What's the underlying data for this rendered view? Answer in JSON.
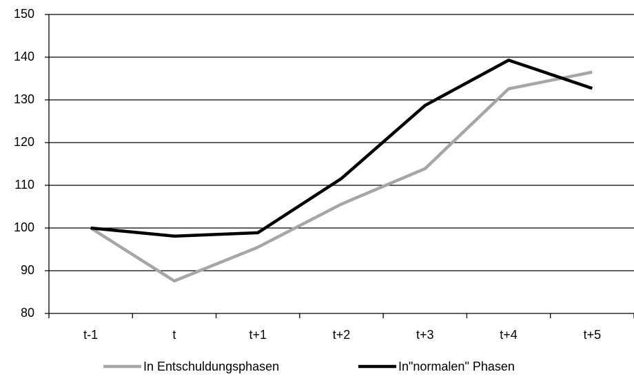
{
  "chart_data": {
    "type": "line",
    "categories": [
      "t-1",
      "t",
      "t+1",
      "t+2",
      "t+3",
      "t+4",
      "t+5"
    ],
    "series": [
      {
        "name": "In Entschuldungsphasen",
        "color": "#a6a6a6",
        "values": [
          100,
          87.6,
          95.5,
          105.6,
          113.9,
          132.6,
          136.5
        ]
      },
      {
        "name": "In\"normalen\" Phasen",
        "color": "#000000",
        "values": [
          100,
          98.1,
          98.9,
          111.6,
          128.7,
          139.3,
          132.7
        ]
      }
    ],
    "ylim": [
      80,
      150
    ],
    "yticks": [
      80,
      90,
      100,
      110,
      120,
      130,
      140,
      150
    ],
    "grid": true
  }
}
